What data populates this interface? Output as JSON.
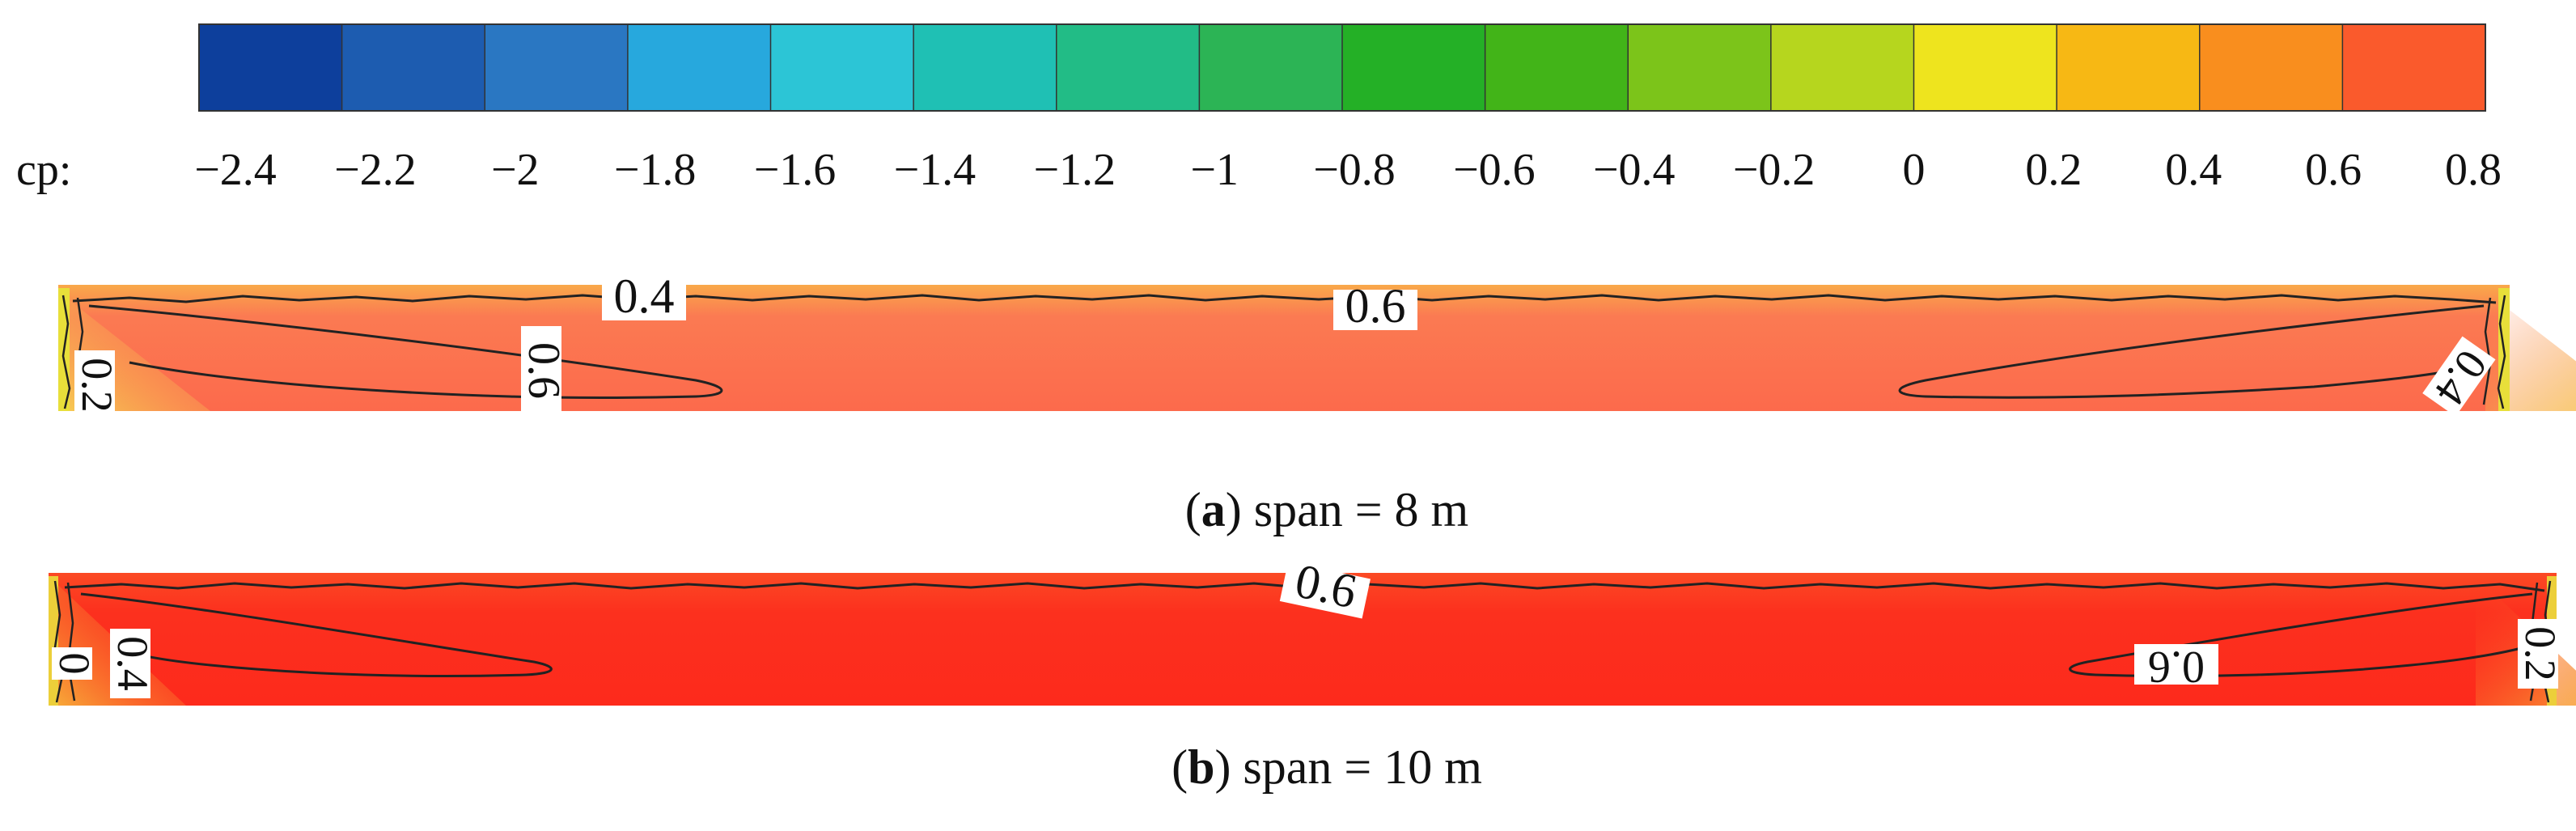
{
  "colorbar": {
    "label": "cp:",
    "ticks": [
      "−2.4",
      "−2.2",
      "−2",
      "−1.8",
      "−1.6",
      "−1.4",
      "−1.2",
      "−1",
      "−0.8",
      "−0.6",
      "−0.4",
      "−0.2",
      "0",
      "0.2",
      "0.4",
      "0.6",
      "0.8"
    ],
    "colors": [
      "#0d3f9c",
      "#1d5cb0",
      "#2a77c2",
      "#27a8dd",
      "#2cc5d6",
      "#1fc0b4",
      "#22bc86",
      "#2cb455",
      "#24b026",
      "#42b418",
      "#7cc41a",
      "#b6d61e",
      "#eee41e",
      "#f7b814",
      "#f98e1e",
      "#fa5a2c"
    ]
  },
  "chart_data": [
    {
      "type": "heatmap",
      "title": "span = 8 m",
      "caption_letter": "a",
      "variable": "cp",
      "scale_range": [
        -2.4,
        0.8
      ],
      "contour_labels": [
        "0.4",
        "0.6",
        "0.6",
        "0.2",
        "0.4"
      ],
      "fill_colors": {
        "edge": "#f9b24e",
        "mid": "#fb6a4e",
        "core": "#fd4f47",
        "tip": "#e9e23a"
      }
    },
    {
      "type": "heatmap",
      "title": "span = 10 m",
      "caption_letter": "b",
      "variable": "cp",
      "scale_range": [
        -2.4,
        0.8
      ],
      "contour_labels": [
        "0.6",
        "0.6",
        "0.4",
        "0",
        "0.2"
      ],
      "fill_colors": {
        "edge": "#fb5a2a",
        "mid": "#fc3a22",
        "core": "#fd2a1c",
        "tip": "#f0d83a"
      }
    }
  ],
  "captions": {
    "a": {
      "open": "(",
      "letter": "a",
      "rest": ") span = 8 m"
    },
    "b": {
      "open": "(",
      "letter": "b",
      "rest": ") span = 10 m"
    }
  }
}
